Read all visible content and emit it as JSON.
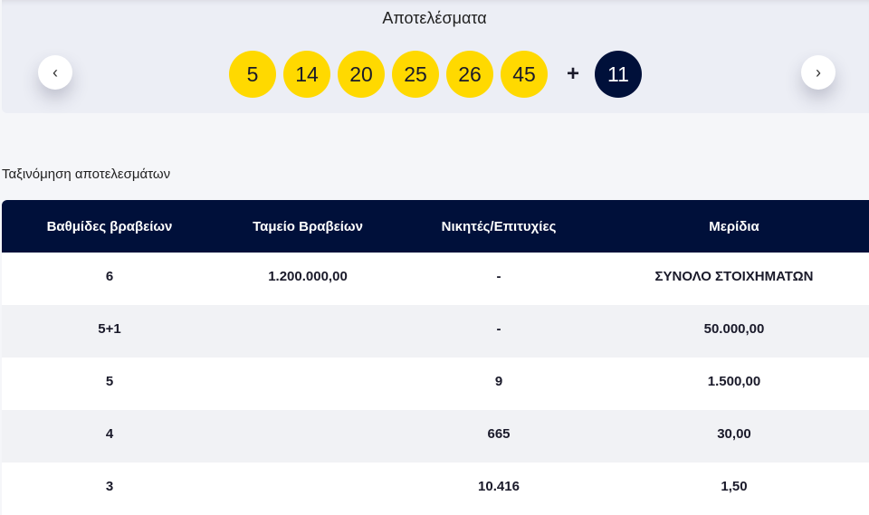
{
  "results": {
    "title": "Αποτελέσματα",
    "numbers": [
      "5",
      "14",
      "20",
      "25",
      "26",
      "45"
    ],
    "plus": "+",
    "bonus": "11",
    "prev_icon": "chevron-left-icon",
    "next_icon": "chevron-right-icon",
    "colors": {
      "ball": "#ffd900",
      "bonus": "#00103a"
    }
  },
  "sort_label": "Ταξινόμηση αποτελεσμάτων",
  "table": {
    "headers": [
      "Βαθμίδες βραβείων",
      "Ταμείο Βραβείων",
      "Νικητές/Επιτυχίες",
      "Μερίδια"
    ],
    "rows": [
      [
        "6",
        "1.200.000,00",
        "-",
        "ΣΥΝΟΛΟ ΣΤΟΙΧΗΜΑΤΩΝ"
      ],
      [
        "5+1",
        "",
        "-",
        "50.000,00"
      ],
      [
        "5",
        "",
        "9",
        "1.500,00"
      ],
      [
        "4",
        "",
        "665",
        "30,00"
      ],
      [
        "3",
        "",
        "10.416",
        "1,50"
      ]
    ]
  }
}
